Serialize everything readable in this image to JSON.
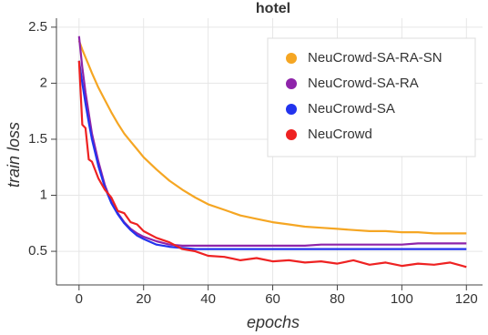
{
  "chart_data": {
    "type": "line",
    "title": "hotel",
    "x_label": "epochs",
    "y_label": "train loss",
    "x": [
      0,
      1,
      2,
      3,
      4,
      6,
      8,
      10,
      12,
      14,
      16,
      18,
      20,
      24,
      28,
      32,
      36,
      40,
      45,
      50,
      55,
      60,
      65,
      70,
      75,
      80,
      85,
      90,
      95,
      100,
      105,
      110,
      115,
      120
    ],
    "series": [
      {
        "name": "NeuCrowd-SA-RA-SN",
        "color": "#f5a623",
        "values": [
          2.38,
          2.3,
          2.23,
          2.16,
          2.09,
          1.96,
          1.85,
          1.74,
          1.64,
          1.55,
          1.48,
          1.41,
          1.34,
          1.23,
          1.13,
          1.05,
          0.98,
          0.92,
          0.87,
          0.82,
          0.79,
          0.76,
          0.74,
          0.72,
          0.71,
          0.7,
          0.69,
          0.68,
          0.68,
          0.67,
          0.67,
          0.66,
          0.66,
          0.66
        ]
      },
      {
        "name": "NeuCrowd-SA-RA",
        "color": "#8e24aa",
        "values": [
          2.42,
          2.14,
          1.92,
          1.73,
          1.55,
          1.3,
          1.09,
          0.94,
          0.84,
          0.76,
          0.7,
          0.66,
          0.63,
          0.59,
          0.56,
          0.55,
          0.55,
          0.55,
          0.55,
          0.55,
          0.55,
          0.55,
          0.55,
          0.55,
          0.56,
          0.56,
          0.56,
          0.56,
          0.56,
          0.56,
          0.57,
          0.57,
          0.57,
          0.57
        ]
      },
      {
        "name": "NeuCrowd-SA",
        "color": "#2233ee",
        "values": [
          2.2,
          2.0,
          1.82,
          1.65,
          1.5,
          1.26,
          1.07,
          0.93,
          0.83,
          0.75,
          0.69,
          0.64,
          0.61,
          0.56,
          0.54,
          0.53,
          0.52,
          0.52,
          0.52,
          0.52,
          0.52,
          0.52,
          0.52,
          0.52,
          0.52,
          0.52,
          0.52,
          0.52,
          0.52,
          0.52,
          0.52,
          0.52,
          0.52,
          0.52
        ]
      },
      {
        "name": "NeuCrowd",
        "color": "#ee2222",
        "values": [
          2.2,
          1.63,
          1.6,
          1.32,
          1.3,
          1.15,
          1.05,
          0.98,
          0.86,
          0.84,
          0.76,
          0.74,
          0.68,
          0.62,
          0.58,
          0.52,
          0.5,
          0.46,
          0.45,
          0.42,
          0.44,
          0.41,
          0.42,
          0.4,
          0.41,
          0.39,
          0.42,
          0.38,
          0.4,
          0.37,
          0.39,
          0.38,
          0.4,
          0.36
        ]
      }
    ],
    "xlim": [
      -7,
      125
    ],
    "ylim": [
      0.2,
      2.58
    ],
    "xticks": [
      0,
      20,
      40,
      60,
      80,
      100,
      120
    ],
    "yticks": [
      0.5,
      1,
      1.5,
      2,
      2.5
    ],
    "grid": true,
    "legend": "top-right"
  }
}
